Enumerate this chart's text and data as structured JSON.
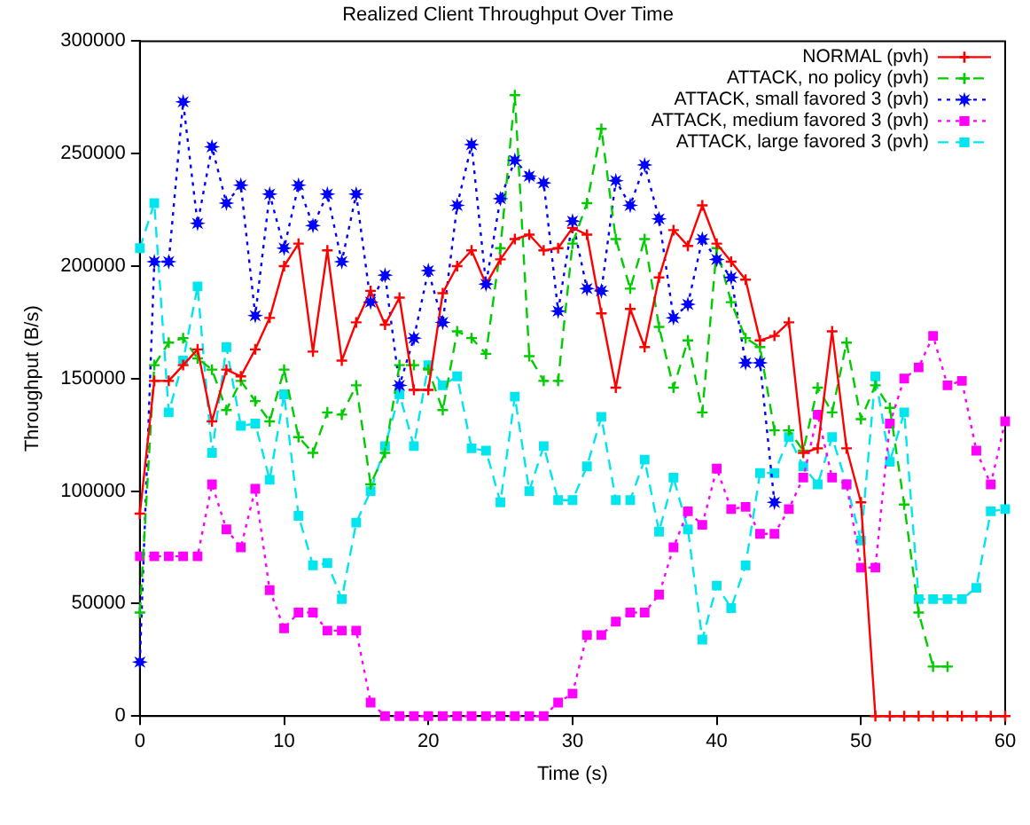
{
  "chart_data": {
    "type": "line",
    "title": "Realized Client Throughput Over Time",
    "xlabel": "Time (s)",
    "ylabel": "Throughput (B/s)",
    "x": [
      0,
      1,
      2,
      3,
      4,
      5,
      6,
      7,
      8,
      9,
      10,
      11,
      12,
      13,
      14,
      15,
      16,
      17,
      18,
      19,
      20,
      21,
      22,
      23,
      24,
      25,
      26,
      27,
      28,
      29,
      30,
      31,
      32,
      33,
      34,
      35,
      36,
      37,
      38,
      39,
      40,
      41,
      42,
      43,
      44,
      45,
      46,
      47,
      48,
      49,
      50,
      51,
      52,
      53,
      54,
      55,
      56,
      57,
      58,
      59,
      60
    ],
    "xlim": [
      0,
      60
    ],
    "xticks": [
      0,
      10,
      20,
      30,
      40,
      50,
      60
    ],
    "ylim": [
      0,
      300000
    ],
    "yticks": [
      0,
      50000,
      100000,
      150000,
      200000,
      250000,
      300000
    ],
    "legend": "top right",
    "grid": false,
    "series": [
      {
        "name": "NORMAL (pvh)",
        "color": "#ff0000",
        "marker": "cross",
        "line_style": "solid",
        "values": [
          90000,
          149000,
          149000,
          156000,
          163000,
          131000,
          154000,
          151000,
          163000,
          177000,
          200000,
          210000,
          162000,
          207000,
          158000,
          175000,
          189000,
          174000,
          186000,
          145000,
          145000,
          188000,
          200000,
          207000,
          192000,
          203000,
          212000,
          214000,
          207000,
          208000,
          217000,
          214000,
          179000,
          146000,
          181000,
          164000,
          195000,
          216000,
          209000,
          227000,
          210000,
          202000,
          194000,
          167000,
          169000,
          175000,
          117000,
          119000,
          171000,
          119000,
          95000,
          0,
          0,
          0,
          0,
          0,
          0,
          0,
          0,
          0,
          0
        ]
      },
      {
        "name": "ATTACK, no policy (pvh)",
        "color": "#00cc00",
        "marker": "cross",
        "line_style": "dashed",
        "values": [
          46000,
          156000,
          166000,
          168000,
          159000,
          154000,
          136000,
          149000,
          140000,
          131000,
          154000,
          124000,
          117000,
          135000,
          134000,
          147000,
          103000,
          117000,
          156000,
          156000,
          154000,
          136000,
          171000,
          168000,
          161000,
          208000,
          276000,
          160000,
          149000,
          149000,
          210000,
          228000,
          261000,
          212000,
          190000,
          212000,
          173000,
          146000,
          167000,
          135000,
          208000,
          184000,
          168000,
          164000,
          127000,
          127000,
          118000,
          146000,
          135000,
          166000,
          132000,
          147000,
          137000,
          94000,
          46000,
          22000,
          22000,
          null,
          null,
          null,
          null
        ]
      },
      {
        "name": "ATTACK, small favored 3 (pvh)",
        "color": "#0000ff",
        "marker": "star",
        "line_style": "dotted",
        "values": [
          24000,
          202000,
          202000,
          273000,
          219000,
          253000,
          228000,
          236000,
          178000,
          232000,
          208000,
          236000,
          218000,
          232000,
          202000,
          232000,
          184000,
          196000,
          147000,
          168000,
          198000,
          175000,
          227000,
          254000,
          192000,
          230000,
          247000,
          240000,
          237000,
          180000,
          220000,
          190000,
          189000,
          238000,
          227000,
          245000,
          221000,
          177000,
          183000,
          212000,
          203000,
          195000,
          157000,
          157000,
          95000,
          null,
          null,
          null,
          null,
          null,
          null,
          null,
          null,
          null,
          null,
          null,
          null,
          null,
          null,
          null,
          null
        ]
      },
      {
        "name": "ATTACK, medium favored 3 (pvh)",
        "color": "#ff00ff",
        "marker": "square",
        "line_style": "dotted",
        "values": [
          71000,
          71000,
          71000,
          71000,
          71000,
          103000,
          83000,
          75000,
          101000,
          56000,
          39000,
          46000,
          46000,
          38000,
          38000,
          38000,
          6000,
          0,
          0,
          0,
          0,
          0,
          0,
          0,
          0,
          0,
          0,
          0,
          0,
          6000,
          10000,
          36000,
          36000,
          42000,
          46000,
          46000,
          54000,
          75000,
          91000,
          85000,
          110000,
          92000,
          93000,
          81000,
          81000,
          92000,
          106000,
          134000,
          106000,
          103000,
          66000,
          66000,
          130000,
          150000,
          155000,
          169000,
          147000,
          149000,
          118000,
          103000,
          131000
        ]
      },
      {
        "name": "ATTACK, large favored 3 (pvh)",
        "color": "#00e5ee",
        "marker": "square",
        "line_style": "dashed",
        "values": [
          208000,
          228000,
          135000,
          158000,
          191000,
          117000,
          164000,
          129000,
          130000,
          105000,
          143000,
          89000,
          67000,
          68000,
          52000,
          86000,
          100000,
          120000,
          143000,
          120000,
          156000,
          147000,
          151000,
          119000,
          118000,
          95000,
          142000,
          100000,
          120000,
          96000,
          96000,
          111000,
          133000,
          96000,
          96000,
          114000,
          82000,
          106000,
          83000,
          34000,
          58000,
          48000,
          67000,
          108000,
          108000,
          124000,
          111000,
          103000,
          124000,
          103000,
          78000,
          151000,
          113000,
          135000,
          52000,
          52000,
          52000,
          52000,
          57000,
          91000,
          92000
        ]
      }
    ]
  }
}
